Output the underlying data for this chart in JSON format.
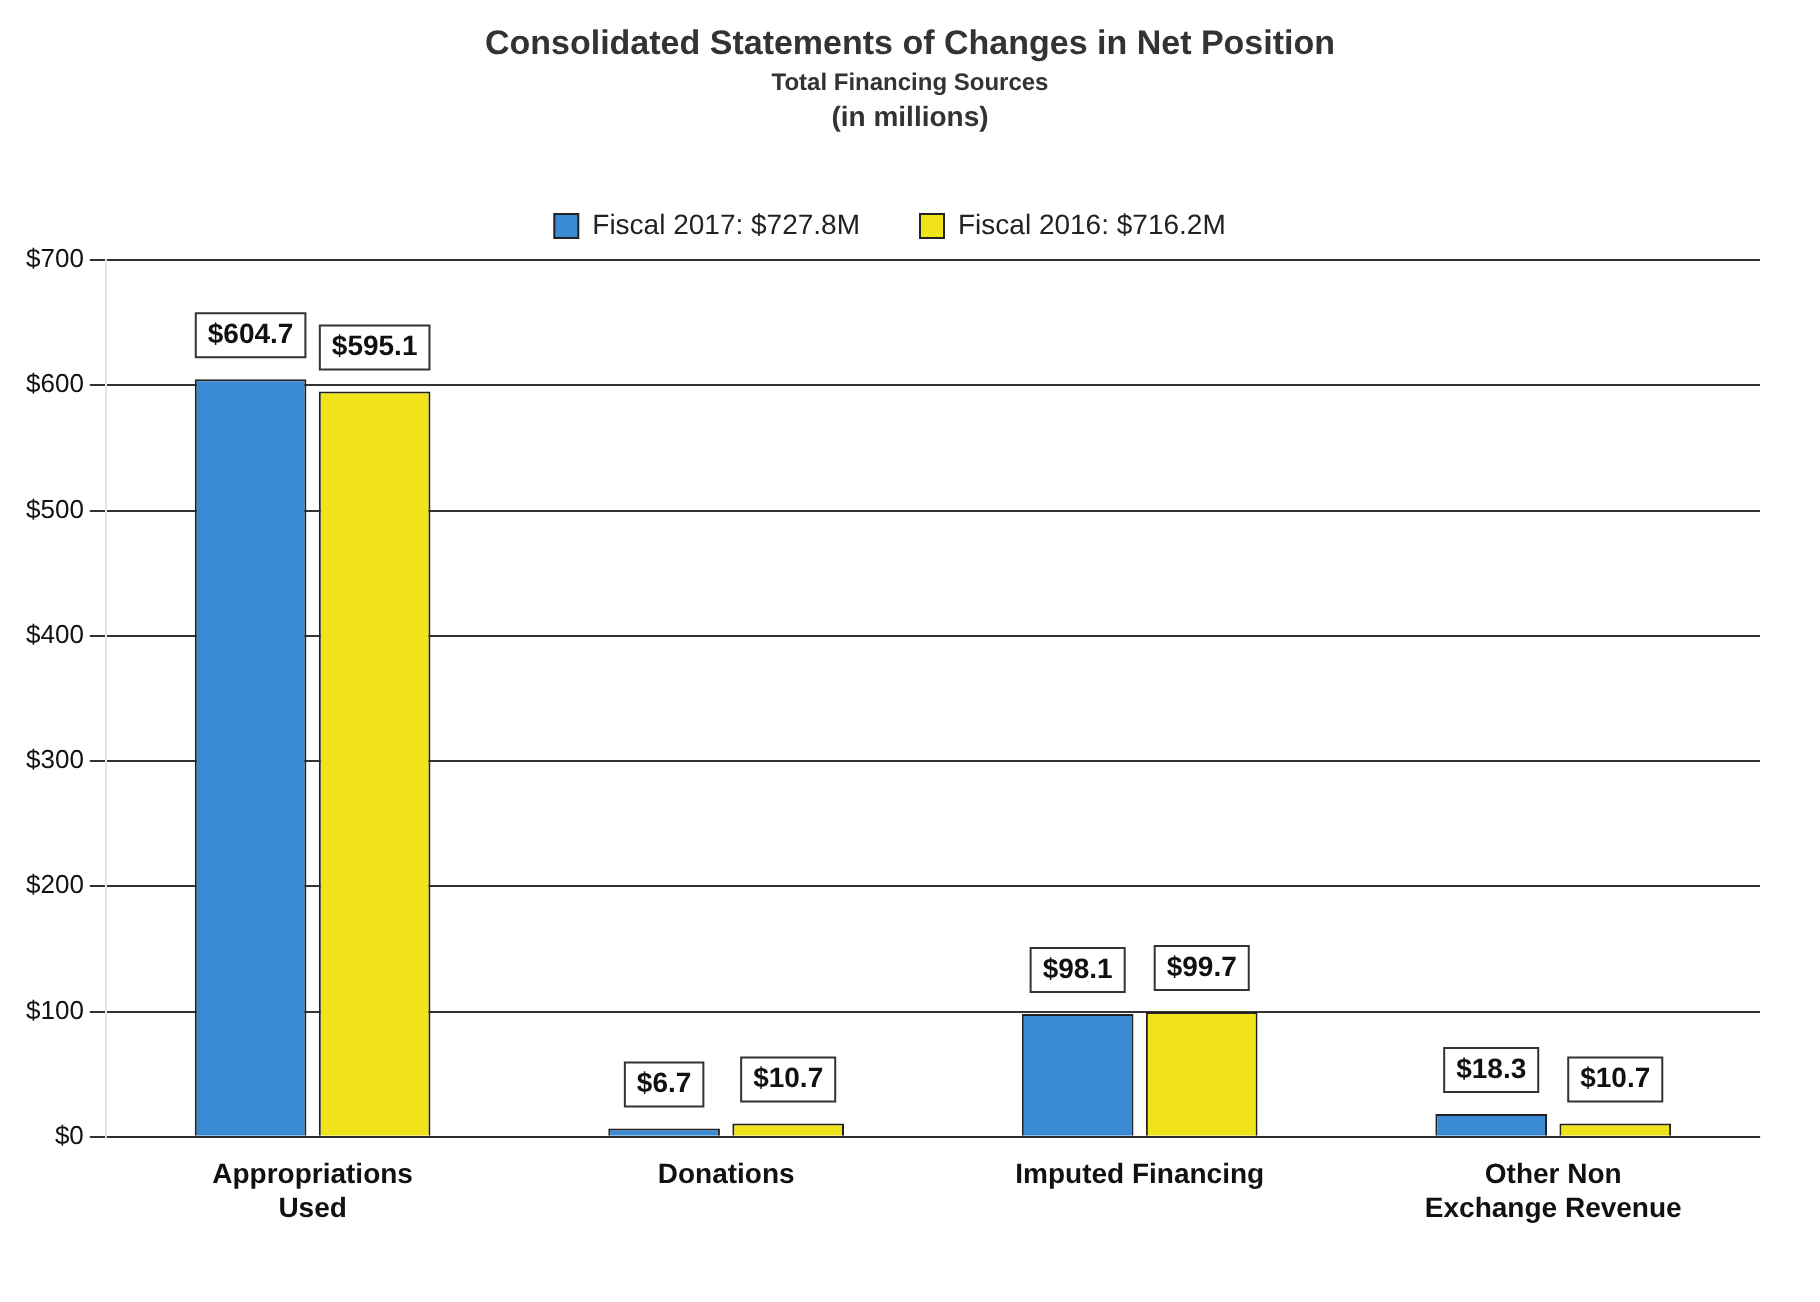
{
  "chart_data": {
    "type": "bar",
    "title": "Consolidated Statements of Changes in Net Position",
    "subtitle": "Total Financing Sources",
    "annotations": [
      "(in millions)"
    ],
    "categories": [
      "Appropriations Used",
      "Donations",
      "Imputed Financing",
      "Other Non Exchange Revenue"
    ],
    "series": [
      {
        "name": "Fiscal 2017: $727.8M",
        "color": "#3b8ad4",
        "values": [
          604.7,
          6.7,
          98.1,
          18.3
        ],
        "value_labels": [
          "$604.7",
          "$6.7",
          "$98.1",
          "$18.3"
        ]
      },
      {
        "name": "Fiscal 2016: $716.2M",
        "color": "#f0e31a",
        "values": [
          595.1,
          10.7,
          99.7,
          10.7
        ],
        "value_labels": [
          "$595.1",
          "$10.7",
          "$99.7",
          "$10.7"
        ]
      }
    ],
    "ylim": [
      0,
      700
    ],
    "yticks": [
      {
        "value": 0,
        "label": "$0"
      },
      {
        "value": 100,
        "label": "$100"
      },
      {
        "value": 200,
        "label": "$200"
      },
      {
        "value": 300,
        "label": "$300"
      },
      {
        "value": 400,
        "label": "$400"
      },
      {
        "value": 500,
        "label": "$500"
      },
      {
        "value": 600,
        "label": "$600"
      },
      {
        "value": 700,
        "label": "$700"
      }
    ],
    "grid": "y",
    "legend": "top"
  }
}
